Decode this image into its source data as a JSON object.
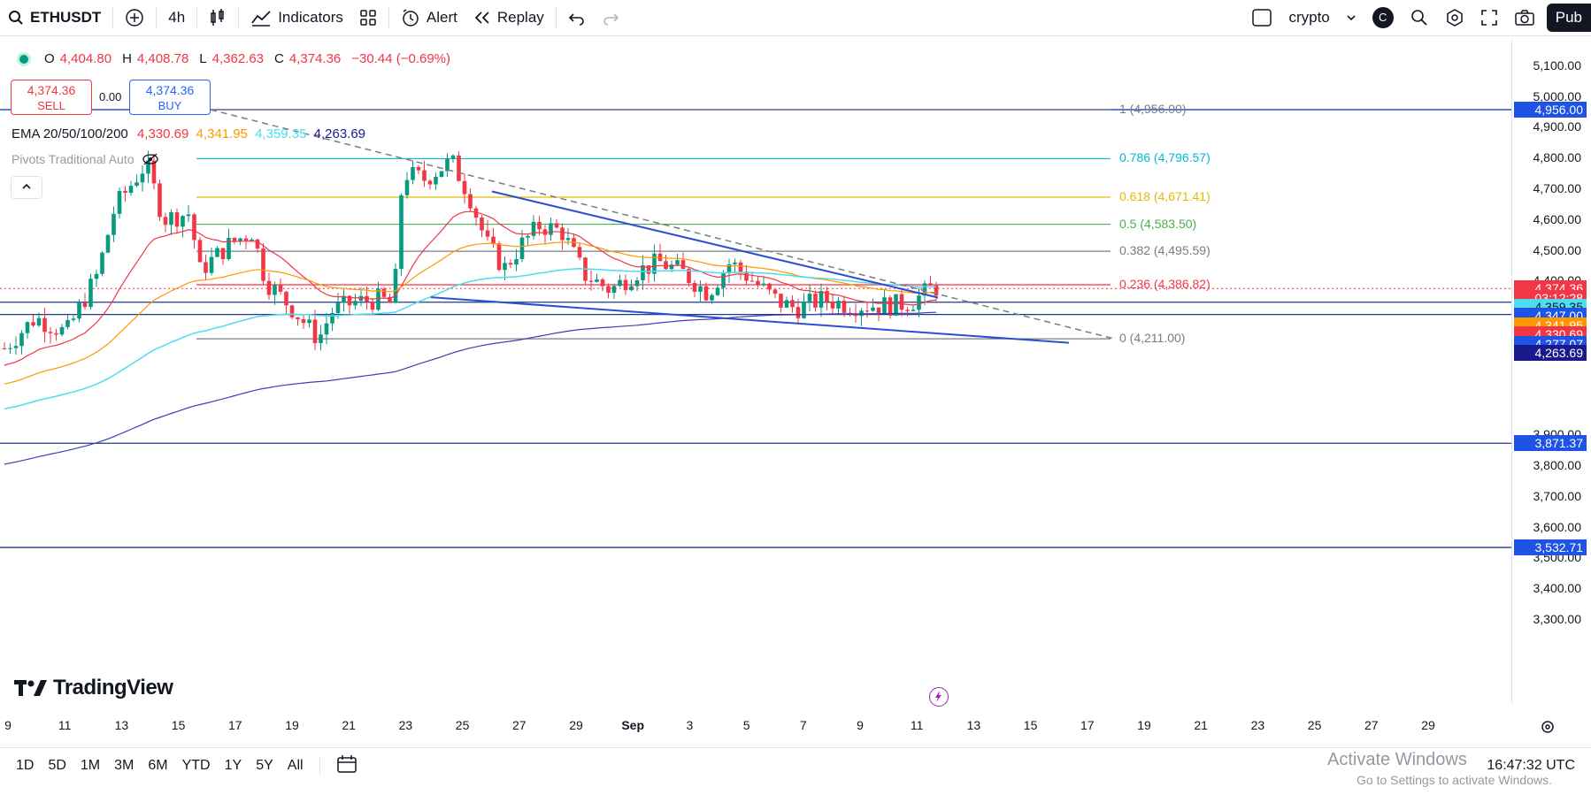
{
  "toolbar": {
    "symbol": "ETHUSDT",
    "interval": "4h",
    "indicators_label": "Indicators",
    "alert_label": "Alert",
    "replay_label": "Replay",
    "layout_name": "crypto",
    "avatar_letter": "C",
    "publish_label": "Pub"
  },
  "legend": {
    "ohlc": {
      "o_label": "O",
      "o": "4,404.80",
      "h_label": "H",
      "h": "4,408.78",
      "l_label": "L",
      "l": "4,362.63",
      "c_label": "C",
      "c": "4,374.36",
      "change": "−30.44 (−0.69%)"
    },
    "sell_price": "4,374.36",
    "sell_label": "SELL",
    "spread": "0.00",
    "buy_price": "4,374.36",
    "buy_label": "BUY",
    "ema_label": "EMA 20/50/100/200",
    "ema_values": [
      "4,330.69",
      "4,341.95",
      "4,359.35",
      "4,263.69"
    ],
    "pivots_label": "Pivots Traditional Auto"
  },
  "colors": {
    "up": "#089981",
    "down": "#f23645",
    "ema20": "#f23645",
    "ema50": "#ff9800",
    "ema100": "#4ddcf0",
    "ema200": "#3f3db0",
    "trend": "#2a4fd0",
    "blue_line": "#1e3a8a"
  },
  "fib_levels": [
    {
      "label": "1 (4,956.00)",
      "price": 4956,
      "color": "#787b86"
    },
    {
      "label": "0.786 (4,796.57)",
      "price": 4796.57,
      "color": "#00bcd4"
    },
    {
      "label": "0.618 (4,671.41)",
      "price": 4671.41,
      "color": "#e6b800"
    },
    {
      "label": "0.5 (4,583.50)",
      "price": 4583.5,
      "color": "#4caf50"
    },
    {
      "label": "0.382 (4,495.59)",
      "price": 4495.59,
      "color": "#787b86"
    },
    {
      "label": "0.236 (4,386.82)",
      "price": 4386.82,
      "color": "#f23645"
    },
    {
      "label": "0 (4,211.00)",
      "price": 4211,
      "color": "#787b86"
    }
  ],
  "horizontal_lines": [
    4956,
    4359.35,
    3871.37,
    3532.71,
    4330.0
  ],
  "price_axis": {
    "labels": [
      "5,100.00",
      "5,000.00",
      "4,900.00",
      "4,800.00",
      "4,700.00",
      "4,600.00",
      "4,500.00",
      "4,400.00",
      "3,900.00",
      "3,800.00",
      "3,700.00",
      "3,600.00",
      "3,500.00",
      "3,400.00",
      "3,300.00"
    ],
    "tags": [
      {
        "text": "4,956.00",
        "price": 4956,
        "bg": "#1e53e5"
      },
      {
        "text": "4,374.36",
        "price": 4374.36,
        "bg": "#f23645"
      },
      {
        "text": "03:12:28",
        "price": 4345,
        "bg": "#f23645"
      },
      {
        "text": "4,359.35",
        "price": 4315,
        "bg": "#4ddcf0",
        "fg": "#131722"
      },
      {
        "text": "4,347.00",
        "price": 4285,
        "bg": "#1e53e5"
      },
      {
        "text": "4,341.95",
        "price": 4255,
        "bg": "#ff9800"
      },
      {
        "text": "4,330.69",
        "price": 4225,
        "bg": "#f23645"
      },
      {
        "text": "4,277.07",
        "price": 4195,
        "bg": "#1e53e5"
      },
      {
        "text": "4,263.69",
        "price": 4165,
        "bg": "#1a1a8c"
      },
      {
        "text": "3,871.37",
        "price": 3871.37,
        "bg": "#1e53e5"
      },
      {
        "text": "3,532.71",
        "price": 3532.71,
        "bg": "#1e53e5"
      }
    ]
  },
  "time_axis": [
    "9",
    "11",
    "13",
    "15",
    "17",
    "19",
    "21",
    "23",
    "25",
    "27",
    "29",
    "Sep",
    "3",
    "5",
    "7",
    "9",
    "11",
    "13",
    "15",
    "17",
    "19",
    "21",
    "23",
    "25",
    "27",
    "29"
  ],
  "range_buttons": [
    "1D",
    "5D",
    "1M",
    "3M",
    "6M",
    "YTD",
    "1Y",
    "5Y",
    "All"
  ],
  "clock": "16:47:32 UTC",
  "brand": "TradingView",
  "os_watermark": {
    "title": "Activate Windows",
    "subtitle": "Go to Settings to activate Windows."
  },
  "chart_data": {
    "type": "candlestick",
    "symbol": "ETHUSDT",
    "interval": "4h",
    "ylim": [
      3250,
      5150
    ],
    "current_price": 4374.36
  }
}
